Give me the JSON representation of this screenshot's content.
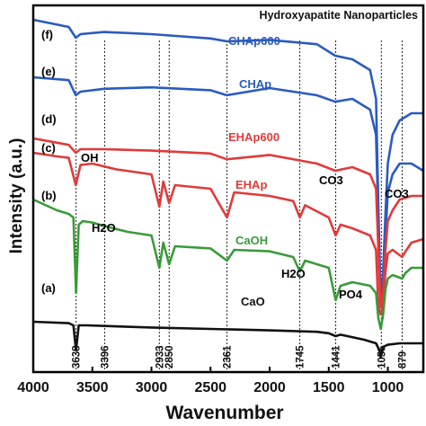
{
  "chart_data": {
    "type": "line",
    "title": "Hydroxyapatite Nanoparticles",
    "xlabel": "Wavenumber",
    "ylabel": "Intensity (a.u.)",
    "xlim": [
      4000,
      700
    ],
    "x_reversed": true,
    "y_ticks_shown": false,
    "grid": false,
    "xticks": [
      4000,
      3500,
      3000,
      2500,
      2000,
      1500,
      1000
    ],
    "xtick_labels": [
      "4000",
      "3500",
      "3000",
      "2500",
      "2000",
      "1500",
      "1000"
    ],
    "series": [
      {
        "name": "CHAp600",
        "panel": "(f)",
        "color": "#2a5bbf",
        "x": [
          4000,
          3700,
          3640,
          3600,
          3400,
          3000,
          2500,
          2362,
          2000,
          1600,
          1445,
          1300,
          1150,
          1100,
          1080,
          1060,
          1040,
          1020,
          1000,
          960,
          900,
          800,
          700
        ],
        "y": [
          36.0,
          35.0,
          33.5,
          34.0,
          34.3,
          34.0,
          33.4,
          33.0,
          33.2,
          32.6,
          31.0,
          30.5,
          29.0,
          25.0,
          10.0,
          -4.0,
          1.0,
          9.0,
          16.0,
          20.0,
          22.0,
          23.0,
          23.0
        ]
      },
      {
        "name": "CHAp",
        "panel": "(e)",
        "color": "#2a5bbf",
        "x": [
          4000,
          3700,
          3640,
          3600,
          3400,
          3000,
          2500,
          2362,
          2000,
          1600,
          1445,
          1300,
          1150,
          1100,
          1080,
          1060,
          1040,
          1020,
          1000,
          960,
          900,
          800,
          700
        ],
        "y": [
          28.0,
          27.6,
          25.5,
          26.0,
          26.4,
          26.6,
          26.2,
          25.5,
          26.5,
          25.5,
          24.6,
          25.0,
          23.5,
          20.0,
          8.0,
          -4.0,
          0.0,
          6.0,
          12.0,
          14.5,
          16.0,
          16.0,
          15.0
        ]
      },
      {
        "name": "EHAp600",
        "panel": "(d)",
        "color": "#e03a3a",
        "x": [
          4000,
          3700,
          3640,
          3600,
          3400,
          3000,
          2500,
          2362,
          2000,
          1600,
          1445,
          1300,
          1150,
          1100,
          1080,
          1060,
          1040,
          1020,
          1000,
          960,
          900,
          800,
          700
        ],
        "y": [
          19.5,
          18.6,
          17.5,
          18.0,
          18.0,
          17.8,
          17.4,
          16.6,
          17.2,
          16.0,
          15.0,
          15.5,
          14.5,
          12.5,
          4.0,
          -4.0,
          -2.0,
          4.0,
          8.0,
          9.5,
          11.0,
          11.5,
          11.5
        ]
      },
      {
        "name": "EHAp",
        "panel": "(c)",
        "color": "#e03a3a",
        "x": [
          4000,
          3800,
          3700,
          3640,
          3600,
          3500,
          3300,
          3000,
          2933,
          2900,
          2850,
          2800,
          2500,
          2361,
          2300,
          2000,
          1800,
          1745,
          1700,
          1500,
          1441,
          1400,
          1300,
          1150,
          1100,
          1080,
          1060,
          1040,
          1020,
          1000,
          960,
          879,
          850,
          800,
          700
        ],
        "y": [
          17.5,
          17.0,
          16.8,
          13.0,
          15.8,
          16.0,
          15.2,
          14.5,
          10.0,
          13.5,
          10.5,
          13.0,
          12.5,
          8.5,
          12.0,
          11.5,
          10.8,
          8.5,
          10.2,
          8.5,
          6.0,
          7.5,
          7.0,
          6.0,
          4.0,
          -4.0,
          -5.0,
          -3.5,
          1.0,
          3.5,
          4.0,
          3.0,
          3.8,
          5.0,
          5.5
        ]
      },
      {
        "name": "CaOH",
        "panel": "(b)",
        "color": "#3a9a3a",
        "x": [
          4000,
          3800,
          3700,
          3660,
          3638,
          3615,
          3580,
          3500,
          3396,
          3200,
          3000,
          2933,
          2900,
          2850,
          2800,
          2500,
          2361,
          2300,
          2000,
          1800,
          1745,
          1700,
          1500,
          1441,
          1400,
          1300,
          1150,
          1100,
          1080,
          1060,
          1040,
          1020,
          1000,
          960,
          879,
          850,
          800,
          700
        ],
        "y": [
          11.0,
          9.5,
          9.0,
          8.5,
          -2.0,
          7.5,
          8.0,
          7.8,
          7.3,
          6.5,
          6.0,
          1.5,
          5.0,
          2.0,
          4.5,
          4.2,
          2.5,
          4.0,
          3.8,
          3.0,
          1.0,
          2.5,
          1.5,
          -3.0,
          -1.0,
          -0.5,
          -1.0,
          -2.0,
          -5.5,
          -7.0,
          -5.0,
          -1.5,
          0.0,
          0.5,
          0.0,
          0.8,
          1.5,
          1.5
        ]
      },
      {
        "name": "CaO",
        "panel": "(a)",
        "color": "#111111",
        "x": [
          4000,
          3700,
          3660,
          3638,
          3615,
          3550,
          3000,
          2500,
          2000,
          1600,
          1500,
          1441,
          1400,
          1200,
          1100,
          1070,
          1060,
          1040,
          1000,
          900,
          800,
          700
        ],
        "y": [
          -6.0,
          -6.2,
          -6.5,
          -10.0,
          -6.5,
          -6.5,
          -6.8,
          -7.0,
          -7.2,
          -7.4,
          -7.6,
          -8.0,
          -7.8,
          -8.5,
          -9.0,
          -10.0,
          -11.0,
          -9.5,
          -9.2,
          -9.0,
          -9.0,
          -9.0
        ]
      }
    ],
    "panel_labels": [
      "(f)",
      "(e)",
      "(d)",
      "(c)",
      "(b)",
      "(a)"
    ],
    "band_labels": [
      "OH",
      "H2O",
      "CO3",
      "CO3",
      "H2O",
      "PO4"
    ],
    "band_markers": [
      3638,
      3396,
      2933,
      2850,
      2361,
      1745,
      1441,
      1055,
      879
    ],
    "band_marker_labels": [
      "3638",
      "3396",
      "2933",
      "2850",
      "2361",
      "1745",
      "1441",
      "1055",
      "879"
    ],
    "ylim": [
      -13,
      38
    ]
  }
}
